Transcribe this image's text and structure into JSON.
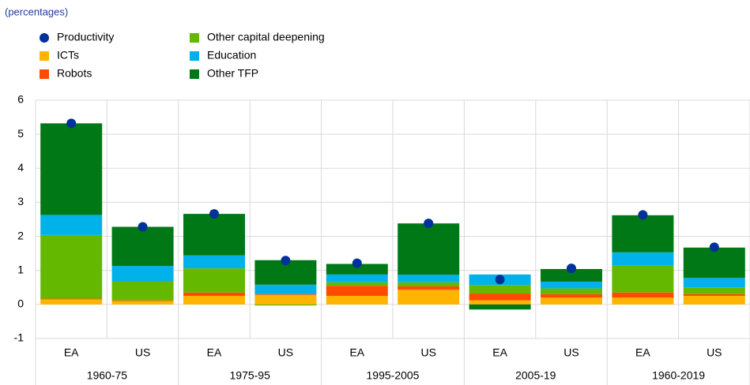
{
  "chart_data": {
    "type": "stacked-bar",
    "subtitle": "(percentages)",
    "categories": [
      "EA",
      "US",
      "EA",
      "US",
      "EA",
      "US",
      "EA",
      "US",
      "EA",
      "US"
    ],
    "groups": [
      "1960-75",
      "1975-95",
      "1995-2005",
      "2005-19",
      "1960-2019"
    ],
    "series": [
      {
        "name": "ICTs",
        "color": "#ffb400",
        "values": [
          0.15,
          0.1,
          0.25,
          0.28,
          0.25,
          0.43,
          0.12,
          0.2,
          0.2,
          0.25
        ]
      },
      {
        "name": "Robots",
        "color": "#ff4b00",
        "values": [
          0.02,
          0.02,
          0.1,
          0.02,
          0.3,
          0.1,
          0.2,
          0.1,
          0.15,
          0.05
        ]
      },
      {
        "name": "Other capital deepening",
        "color": "#65b800",
        "values": [
          1.87,
          0.56,
          0.71,
          -0.03,
          0.1,
          0.12,
          0.25,
          0.17,
          0.79,
          0.2
        ]
      },
      {
        "name": "Education",
        "color": "#00b1ea",
        "values": [
          0.59,
          0.45,
          0.38,
          0.28,
          0.23,
          0.22,
          0.31,
          0.2,
          0.39,
          0.28
        ]
      },
      {
        "name": "Other TFP",
        "color": "#007816",
        "values": [
          2.69,
          1.15,
          1.22,
          0.72,
          0.31,
          1.51,
          -0.15,
          0.37,
          1.09,
          0.89
        ]
      }
    ],
    "markers": {
      "name": "Productivity",
      "color": "#003299",
      "values": [
        5.32,
        2.28,
        2.66,
        1.29,
        1.21,
        2.38,
        0.73,
        1.06,
        2.63,
        1.68
      ]
    },
    "ylim": [
      -1,
      6
    ],
    "yticks": [
      -1,
      0,
      1,
      2,
      3,
      4,
      5,
      6
    ],
    "grid": true
  }
}
